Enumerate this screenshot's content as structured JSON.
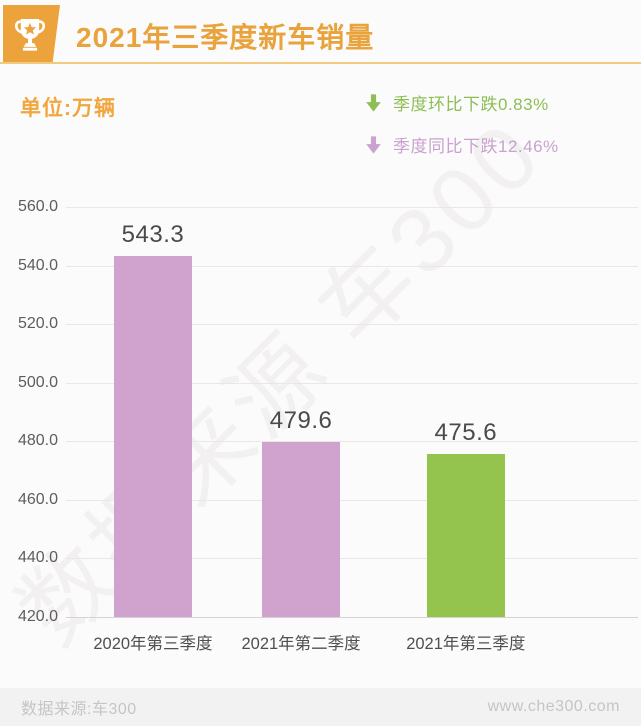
{
  "header": {
    "title": "2021年三季度新车销量"
  },
  "unit_label": "单位:万辆",
  "legend": [
    {
      "label": "季度环比下跌0.83%",
      "color": "#8CBE55"
    },
    {
      "label": "季度同比下跌12.46%",
      "color": "#C9A2CF"
    }
  ],
  "chart_data": {
    "type": "bar",
    "title": "2021年三季度新车销量",
    "ylabel": "万辆",
    "categories": [
      "2020年第三季度",
      "2021年第二季度",
      "2021年第三季度"
    ],
    "values": [
      543.3,
      479.6,
      475.6
    ],
    "value_labels": [
      "543.3",
      "479.6",
      "475.6"
    ],
    "bar_colors": [
      "#CFA3CD",
      "#CFA3CD",
      "#94C44D"
    ],
    "bar_centers_pct": [
      15.2,
      41.1,
      69.9
    ],
    "ylim": [
      420,
      560
    ],
    "ytick_step": 20,
    "yticks": [
      "560.0",
      "540.0",
      "520.0",
      "500.0",
      "480.0",
      "460.0",
      "440.0",
      "420.0"
    ],
    "grid": true,
    "legend_position": "top-right"
  },
  "watermark": "数据来源 车300",
  "footer": {
    "source": "数据来源:车300",
    "site": "www.che300.com"
  },
  "colors": {
    "accent_orange": "#EDA33C",
    "divider_orange": "#EFCA80",
    "bar_purple": "#CFA3CD",
    "bar_green": "#94C44D",
    "gridline": "#E9E7E8"
  }
}
